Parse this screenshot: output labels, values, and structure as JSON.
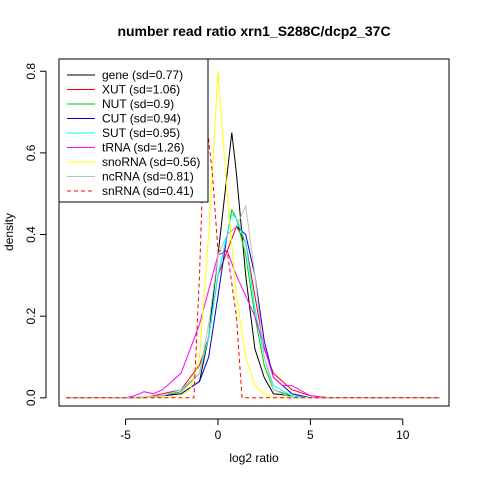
{
  "chart_data": {
    "type": "line",
    "title": "number read ratio xrn1_S288C/dcp2_37C",
    "xlabel": "log2 ratio",
    "ylabel": "density",
    "xlim": [
      -8.6,
      12.5
    ],
    "ylim": [
      -0.02,
      0.83
    ],
    "x_ticks": [
      -5,
      0,
      5,
      10
    ],
    "y_ticks": [
      0.0,
      0.2,
      0.4,
      0.6,
      0.8
    ],
    "x_tick_labels": [
      "-5",
      "0",
      "5",
      "10"
    ],
    "y_tick_labels": [
      "0.0",
      "0.2",
      "0.4",
      "0.6",
      "0.8"
    ],
    "legend_position": "top-left",
    "grid": false,
    "series": [
      {
        "name": "gene (sd=0.77)",
        "color": "#000000",
        "dash": "solid",
        "x": [
          -8.2,
          -5.0,
          -4.0,
          -3.0,
          -2.0,
          -1.0,
          -0.5,
          0.0,
          0.5,
          0.75,
          1.0,
          1.5,
          2.0,
          2.5,
          3.0,
          4.0,
          5.0,
          6.0,
          12.0
        ],
        "y": [
          0.0,
          0.0,
          0.0,
          0.005,
          0.01,
          0.04,
          0.15,
          0.35,
          0.55,
          0.65,
          0.55,
          0.3,
          0.12,
          0.05,
          0.01,
          0.005,
          0.0,
          0.0,
          0.0
        ]
      },
      {
        "name": "XUT (sd=1.06)",
        "color": "#ff0000",
        "dash": "solid",
        "x": [
          -8.2,
          -5.0,
          -4.0,
          -3.0,
          -2.0,
          -1.0,
          -0.5,
          0.0,
          0.5,
          1.0,
          1.5,
          2.0,
          2.5,
          3.0,
          4.0,
          5.0,
          6.0,
          12.0
        ],
        "y": [
          0.0,
          0.0,
          0.0,
          0.01,
          0.02,
          0.08,
          0.15,
          0.3,
          0.36,
          0.42,
          0.38,
          0.25,
          0.12,
          0.06,
          0.02,
          0.005,
          0.0,
          0.0
        ]
      },
      {
        "name": "NUT (sd=0.9)",
        "color": "#00cd00",
        "dash": "solid",
        "x": [
          -8.2,
          -5.0,
          -4.0,
          -3.0,
          -2.0,
          -1.0,
          -0.5,
          0.0,
          0.5,
          0.75,
          1.0,
          1.5,
          2.0,
          2.5,
          3.0,
          4.0,
          5.0,
          6.0,
          12.0
        ],
        "y": [
          0.0,
          0.0,
          0.0,
          0.005,
          0.015,
          0.06,
          0.15,
          0.3,
          0.4,
          0.46,
          0.44,
          0.35,
          0.2,
          0.08,
          0.02,
          0.005,
          0.0,
          0.0,
          0.0
        ]
      },
      {
        "name": "CUT (sd=0.94)",
        "color": "#0000cd",
        "dash": "solid",
        "x": [
          -8.2,
          -5.0,
          -4.0,
          -3.0,
          -2.0,
          -1.0,
          -0.5,
          0.0,
          0.5,
          1.0,
          1.5,
          2.0,
          2.5,
          3.0,
          4.0,
          5.0,
          6.0,
          12.0
        ],
        "y": [
          0.0,
          0.0,
          0.0,
          0.005,
          0.01,
          0.04,
          0.1,
          0.25,
          0.4,
          0.42,
          0.4,
          0.3,
          0.14,
          0.05,
          0.01,
          0.0,
          0.0,
          0.0
        ]
      },
      {
        "name": "SUT (sd=0.95)",
        "color": "#00ffff",
        "dash": "solid",
        "x": [
          -8.2,
          -5.0,
          -4.0,
          -3.0,
          -2.0,
          -1.0,
          -0.5,
          0.0,
          0.5,
          0.75,
          1.0,
          1.5,
          2.0,
          2.5,
          3.0,
          4.0,
          5.0,
          6.0,
          12.0
        ],
        "y": [
          0.0,
          0.0,
          0.0,
          0.005,
          0.02,
          0.06,
          0.15,
          0.3,
          0.4,
          0.45,
          0.44,
          0.38,
          0.22,
          0.1,
          0.03,
          0.005,
          0.0,
          0.0,
          0.0
        ]
      },
      {
        "name": "tRNA (sd=1.26)",
        "color": "#ff00ff",
        "dash": "solid",
        "x": [
          -8.2,
          -5.0,
          -4.5,
          -4.0,
          -3.5,
          -3.0,
          -2.0,
          -1.0,
          0.0,
          0.5,
          1.0,
          2.0,
          3.0,
          3.5,
          4.0,
          5.0,
          6.0,
          12.0
        ],
        "y": [
          0.0,
          0.0,
          0.005,
          0.015,
          0.01,
          0.02,
          0.06,
          0.18,
          0.35,
          0.36,
          0.3,
          0.2,
          0.05,
          0.03,
          0.03,
          0.005,
          0.0,
          0.0
        ]
      },
      {
        "name": "snoRNA (sd=0.56)",
        "color": "#ffff00",
        "dash": "solid",
        "x": [
          -8.2,
          -3.0,
          -2.0,
          -1.5,
          -1.0,
          -0.5,
          0.0,
          0.5,
          1.0,
          1.5,
          2.0,
          2.5,
          3.0,
          4.0,
          12.0
        ],
        "y": [
          0.0,
          0.0,
          0.005,
          0.02,
          0.1,
          0.4,
          0.8,
          0.5,
          0.25,
          0.1,
          0.03,
          0.01,
          0.0,
          0.0,
          0.0
        ]
      },
      {
        "name": "ncRNA (sd=0.81)",
        "color": "#bebebe",
        "dash": "solid",
        "x": [
          -8.2,
          -5.0,
          -3.0,
          -2.0,
          -1.0,
          -0.5,
          0.0,
          0.5,
          1.0,
          1.5,
          2.0,
          2.5,
          3.0,
          4.0,
          5.0,
          12.0
        ],
        "y": [
          0.0,
          0.0,
          0.005,
          0.02,
          0.06,
          0.18,
          0.35,
          0.4,
          0.42,
          0.47,
          0.3,
          0.1,
          0.02,
          0.0,
          0.0,
          0.0
        ]
      },
      {
        "name": "snRNA (sd=0.41)",
        "color": "#ff0000",
        "dash": "dashed",
        "x": [
          -8.2,
          -1.3,
          -1.0,
          -0.7,
          -0.3,
          0.0,
          0.5,
          1.0,
          1.3,
          12.0
        ],
        "y": [
          0.0,
          0.0,
          0.3,
          0.71,
          0.55,
          0.36,
          0.36,
          0.2,
          0.0,
          0.0
        ]
      }
    ]
  }
}
